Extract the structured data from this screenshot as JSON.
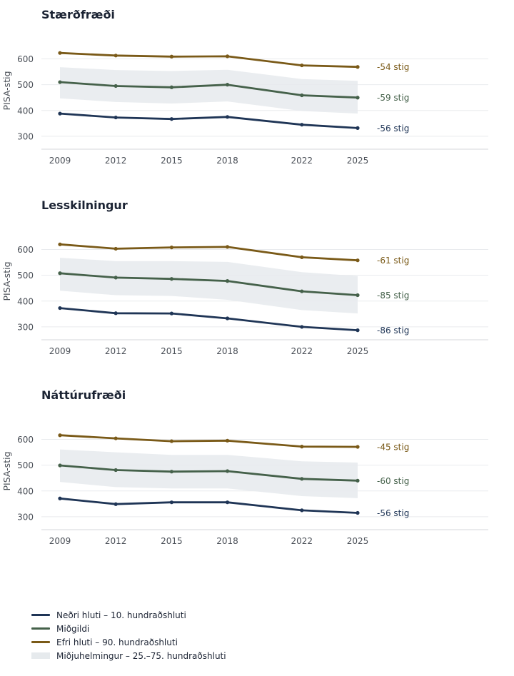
{
  "colors": {
    "low": "#1f3556",
    "median": "#45614a",
    "high": "#7a5a18",
    "band": "#e6eaed"
  },
  "chart_data": [
    {
      "type": "line",
      "title": "Stærðfræði",
      "ylabel": "PISA-stig",
      "x": [
        2009,
        2012,
        2015,
        2018,
        2022,
        2025
      ],
      "yticks": [
        300,
        400,
        500,
        600
      ],
      "ylim": [
        250,
        690
      ],
      "series": [
        {
          "key": "high",
          "name": "Efri hluti – 90. hundraðshluti",
          "values": [
            623,
            613,
            609,
            610,
            575,
            569
          ],
          "annotation": "-54 stig"
        },
        {
          "key": "median",
          "name": "Miðgildi",
          "values": [
            510,
            495,
            490,
            500,
            459,
            450
          ],
          "annotation": "-59 stig"
        },
        {
          "key": "low",
          "name": "Neðri hluti – 10. hundraðshluti",
          "values": [
            388,
            373,
            367,
            375,
            345,
            332
          ],
          "annotation": "-56 stig"
        }
      ],
      "band": {
        "name": "Miðjuhelmingur – 25.–75. hundraðshluti",
        "upper": [
          568,
          557,
          553,
          558,
          522,
          515
        ],
        "lower": [
          447,
          433,
          427,
          435,
          398,
          388
        ]
      }
    },
    {
      "type": "line",
      "title": "Lesskilningur",
      "ylabel": "PISA-stig",
      "x": [
        2009,
        2012,
        2015,
        2018,
        2022,
        2025
      ],
      "yticks": [
        300,
        400,
        500,
        600
      ],
      "ylim": [
        250,
        690
      ],
      "series": [
        {
          "key": "high",
          "name": "Efri hluti – 90. hundraðshluti",
          "values": [
            620,
            603,
            608,
            610,
            570,
            558
          ],
          "annotation": "-61 stig"
        },
        {
          "key": "median",
          "name": "Miðgildi",
          "values": [
            508,
            491,
            486,
            478,
            438,
            423
          ],
          "annotation": "-85 stig"
        },
        {
          "key": "low",
          "name": "Neðri hluti – 10. hundraðshluti",
          "values": [
            373,
            353,
            352,
            333,
            300,
            287
          ],
          "annotation": "-86 stig"
        }
      ],
      "band": {
        "name": "Miðjuhelmingur – 25.–75. hundraðshluti",
        "upper": [
          568,
          555,
          555,
          552,
          512,
          497
        ],
        "lower": [
          440,
          423,
          420,
          405,
          365,
          352
        ]
      }
    },
    {
      "type": "line",
      "title": "Náttúrufræði",
      "ylabel": "PISA-stig",
      "x": [
        2009,
        2012,
        2015,
        2018,
        2022,
        2025
      ],
      "yticks": [
        300,
        400,
        500,
        600
      ],
      "ylim": [
        250,
        690
      ],
      "series": [
        {
          "key": "high",
          "name": "Efri hluti – 90. hundraðshluti",
          "values": [
            616,
            604,
            593,
            595,
            572,
            571
          ],
          "annotation": "-45 stig"
        },
        {
          "key": "median",
          "name": "Miðgildi",
          "values": [
            499,
            481,
            475,
            477,
            447,
            440
          ],
          "annotation": "-60 stig"
        },
        {
          "key": "low",
          "name": "Neðri hluti – 10. hundraðshluti",
          "values": [
            371,
            349,
            356,
            356,
            325,
            315
          ],
          "annotation": "-56 stig"
        }
      ],
      "band": {
        "name": "Miðjuhelmingur – 25.–75. hundraðshluti",
        "upper": [
          561,
          550,
          540,
          540,
          515,
          510
        ],
        "lower": [
          435,
          415,
          410,
          410,
          380,
          372
        ]
      }
    }
  ],
  "legend": [
    {
      "key": "low",
      "kind": "line",
      "label": "Neðri hluti – 10. hundraðshluti"
    },
    {
      "key": "median",
      "kind": "line",
      "label": "Miðgildi"
    },
    {
      "key": "high",
      "kind": "line",
      "label": "Efri hluti – 90. hundraðshluti"
    },
    {
      "key": "band",
      "kind": "band",
      "label": "Miðjuhelmingur – 25.–75. hundraðshluti"
    }
  ]
}
